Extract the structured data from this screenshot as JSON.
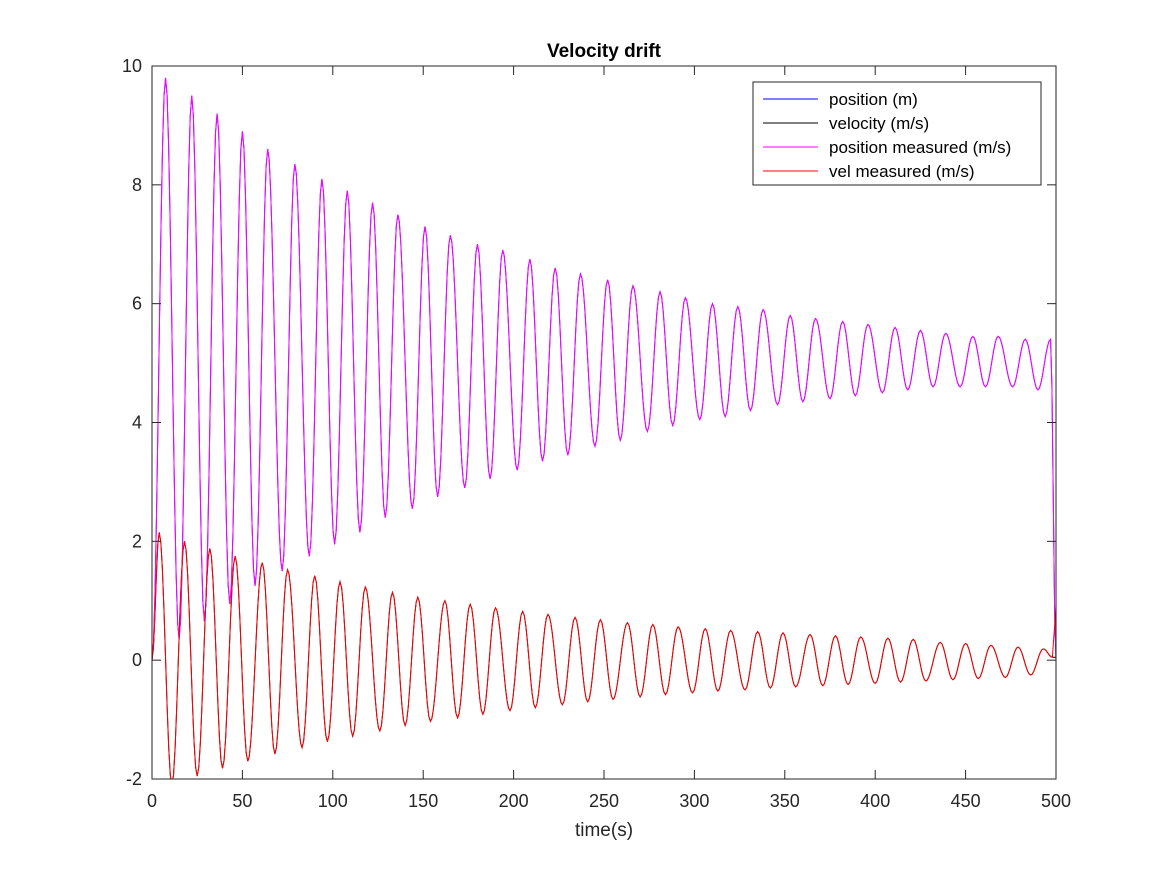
{
  "chart_data": {
    "type": "line",
    "title": "Velocity drift",
    "xlabel": "time(s)",
    "ylabel": "",
    "xlim": [
      0,
      500
    ],
    "ylim": [
      -2,
      10
    ],
    "xticks": [
      0,
      50,
      100,
      150,
      200,
      250,
      300,
      350,
      400,
      450,
      500
    ],
    "yticks": [
      -2,
      0,
      2,
      4,
      6,
      8,
      10
    ],
    "xtick_labels": [
      "0",
      "50",
      "100",
      "150",
      "200",
      "250",
      "300",
      "350",
      "400",
      "450",
      "500"
    ],
    "ytick_labels": [
      "-2",
      "0",
      "2",
      "4",
      "6",
      "8",
      "10"
    ],
    "grid": false,
    "legend_position": "top-right",
    "series": [
      {
        "name": "position (m)",
        "color": "#0000ff",
        "x": [
          0,
          7.5,
          15,
          22,
          29,
          36,
          43,
          50,
          57,
          64,
          72,
          79,
          87,
          94,
          101,
          108,
          115,
          122,
          129,
          136,
          144,
          151,
          158,
          165,
          173,
          180,
          187,
          194,
          202,
          209,
          216,
          223,
          230,
          237,
          245,
          252,
          259,
          266,
          274,
          281,
          288,
          295,
          303,
          310,
          317,
          324,
          331,
          338,
          346,
          353,
          360,
          367,
          375,
          382,
          389,
          396,
          404,
          411,
          418,
          425,
          432,
          439,
          447,
          454,
          461,
          468,
          476,
          483,
          490,
          497,
          500
        ],
        "y": [
          0.0,
          9.8,
          0.35,
          9.5,
          0.65,
          9.2,
          0.95,
          8.9,
          1.25,
          8.6,
          1.5,
          8.35,
          1.75,
          8.1,
          1.95,
          7.9,
          2.15,
          7.7,
          2.4,
          7.5,
          2.55,
          7.3,
          2.75,
          7.15,
          2.9,
          7.0,
          3.05,
          6.9,
          3.2,
          6.75,
          3.35,
          6.6,
          3.45,
          6.5,
          3.6,
          6.4,
          3.7,
          6.3,
          3.85,
          6.2,
          3.95,
          6.1,
          4.05,
          6.0,
          4.1,
          5.95,
          4.2,
          5.9,
          4.3,
          5.8,
          4.35,
          5.75,
          4.4,
          5.7,
          4.45,
          5.65,
          4.5,
          5.6,
          4.55,
          5.55,
          4.6,
          5.5,
          4.6,
          5.45,
          4.6,
          5.45,
          4.6,
          5.4,
          4.55,
          5.4,
          0.0
        ]
      },
      {
        "name": "velocity (m/s)",
        "color": "#000000",
        "x": [
          0,
          4,
          11,
          18,
          25,
          32,
          39,
          46,
          53,
          61,
          68,
          75,
          83,
          90,
          97,
          104,
          111,
          118,
          126,
          133,
          140,
          147,
          154,
          162,
          169,
          176,
          183,
          190,
          198,
          205,
          212,
          219,
          227,
          234,
          241,
          248,
          255,
          263,
          270,
          277,
          284,
          291,
          299,
          306,
          313,
          320,
          328,
          335,
          342,
          349,
          356,
          364,
          371,
          378,
          385,
          392,
          400,
          407,
          414,
          421,
          428,
          436,
          443,
          450,
          457,
          464,
          472,
          479,
          486,
          493,
          498,
          500
        ],
        "y": [
          0.0,
          2.15,
          -2.1,
          2.0,
          -1.95,
          1.88,
          -1.82,
          1.75,
          -1.7,
          1.64,
          -1.58,
          1.52,
          -1.47,
          1.42,
          -1.37,
          1.32,
          -1.28,
          1.23,
          -1.19,
          1.14,
          -1.1,
          1.06,
          -1.03,
          1.0,
          -0.97,
          0.94,
          -0.91,
          0.88,
          -0.85,
          0.82,
          -0.8,
          0.77,
          -0.75,
          0.72,
          -0.7,
          0.68,
          -0.66,
          0.63,
          -0.62,
          0.6,
          -0.58,
          0.56,
          -0.55,
          0.53,
          -0.52,
          0.5,
          -0.5,
          0.48,
          -0.47,
          0.46,
          -0.45,
          0.43,
          -0.43,
          0.41,
          -0.41,
          0.39,
          -0.39,
          0.37,
          -0.37,
          0.35,
          -0.35,
          0.3,
          -0.33,
          0.28,
          -0.31,
          0.25,
          -0.29,
          0.22,
          -0.25,
          0.19,
          0.05,
          0.05
        ]
      },
      {
        "name": "position measured (m/s)",
        "color": "#ff00ff",
        "x": [
          0,
          7.5,
          15,
          22,
          29,
          36,
          43,
          50,
          57,
          64,
          72,
          79,
          87,
          94,
          101,
          108,
          115,
          122,
          129,
          136,
          144,
          151,
          158,
          165,
          173,
          180,
          187,
          194,
          202,
          209,
          216,
          223,
          230,
          237,
          245,
          252,
          259,
          266,
          274,
          281,
          288,
          295,
          303,
          310,
          317,
          324,
          331,
          338,
          346,
          353,
          360,
          367,
          375,
          382,
          389,
          396,
          404,
          411,
          418,
          425,
          432,
          439,
          447,
          454,
          461,
          468,
          476,
          483,
          490,
          497,
          500
        ],
        "y": [
          0.0,
          9.8,
          0.35,
          9.5,
          0.65,
          9.2,
          0.95,
          8.9,
          1.25,
          8.6,
          1.5,
          8.35,
          1.75,
          8.1,
          1.95,
          7.9,
          2.15,
          7.7,
          2.4,
          7.5,
          2.55,
          7.3,
          2.75,
          7.15,
          2.9,
          7.0,
          3.05,
          6.9,
          3.2,
          6.75,
          3.35,
          6.6,
          3.45,
          6.5,
          3.6,
          6.4,
          3.7,
          6.3,
          3.85,
          6.2,
          3.95,
          6.1,
          4.05,
          6.0,
          4.1,
          5.95,
          4.2,
          5.9,
          4.3,
          5.8,
          4.35,
          5.75,
          4.4,
          5.7,
          4.45,
          5.65,
          4.5,
          5.6,
          4.55,
          5.55,
          4.6,
          5.5,
          4.6,
          5.45,
          4.6,
          5.45,
          4.6,
          5.4,
          4.55,
          5.4,
          0.0
        ]
      },
      {
        "name": "vel measured (m/s)",
        "color": "#ff0000",
        "x": [
          0,
          4,
          11,
          18,
          25,
          32,
          39,
          46,
          53,
          61,
          68,
          75,
          83,
          90,
          97,
          104,
          111,
          118,
          126,
          133,
          140,
          147,
          154,
          162,
          169,
          176,
          183,
          190,
          198,
          205,
          212,
          219,
          227,
          234,
          241,
          248,
          255,
          263,
          270,
          277,
          284,
          291,
          299,
          306,
          313,
          320,
          328,
          335,
          342,
          349,
          356,
          364,
          371,
          378,
          385,
          392,
          400,
          407,
          414,
          421,
          428,
          436,
          443,
          450,
          457,
          464,
          472,
          479,
          486,
          493,
          498,
          500
        ],
        "y": [
          0.0,
          2.15,
          -2.1,
          2.0,
          -1.95,
          1.88,
          -1.82,
          1.75,
          -1.7,
          1.64,
          -1.58,
          1.52,
          -1.47,
          1.42,
          -1.37,
          1.32,
          -1.28,
          1.23,
          -1.19,
          1.14,
          -1.1,
          1.06,
          -1.03,
          1.0,
          -0.97,
          0.94,
          -0.91,
          0.88,
          -0.85,
          0.82,
          -0.8,
          0.77,
          -0.75,
          0.72,
          -0.7,
          0.68,
          -0.66,
          0.63,
          -0.62,
          0.6,
          -0.58,
          0.56,
          -0.55,
          0.53,
          -0.52,
          0.5,
          -0.5,
          0.48,
          -0.47,
          0.46,
          -0.45,
          0.43,
          -0.43,
          0.41,
          -0.41,
          0.39,
          -0.39,
          0.37,
          -0.37,
          0.35,
          -0.35,
          0.3,
          -0.33,
          0.28,
          -0.31,
          0.25,
          -0.29,
          0.22,
          -0.25,
          0.19,
          0.05,
          0.9
        ]
      }
    ]
  }
}
